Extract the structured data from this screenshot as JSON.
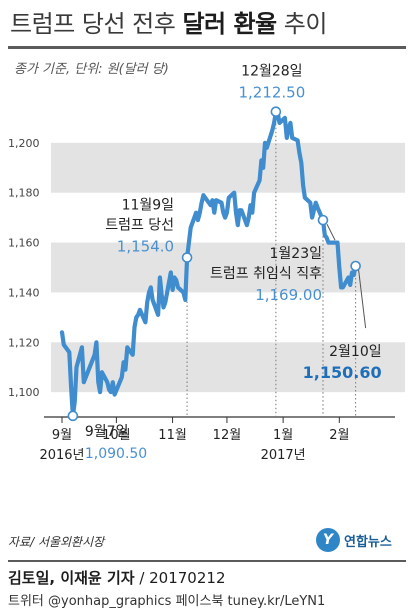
{
  "title": {
    "normal": "트럼프 당선 전후 ",
    "bold": "달러 환율",
    "tail": " 추이"
  },
  "unit_note": "종가 기준, 단위: 원(달러 당)",
  "chart_data": {
    "type": "line",
    "title": "트럼프 당선 전후 달러 환율 추이",
    "ylabel": "원(달러 당)",
    "ylim": [
      1080,
      1220
    ],
    "yticks": [
      1100,
      1120,
      1140,
      1160,
      1180,
      1200
    ],
    "ytick_labels": [
      "1,100",
      "1,120",
      "1,140",
      "1,160",
      "1,180",
      "1,200"
    ],
    "shaded_bands": [
      [
        1100,
        1120
      ],
      [
        1140,
        1160
      ],
      [
        1180,
        1200
      ]
    ],
    "xlim": [
      "2016-09-01",
      "2017-02-24"
    ],
    "xticks": [
      {
        "date": "2016-09-01",
        "label": "9월",
        "sublabel": "2016년"
      },
      {
        "date": "2016-10-01",
        "label": "10월",
        "sublabel": ""
      },
      {
        "date": "2016-11-01",
        "label": "11월",
        "sublabel": ""
      },
      {
        "date": "2016-12-01",
        "label": "12월",
        "sublabel": ""
      },
      {
        "date": "2017-01-01",
        "label": "1월",
        "sublabel": "2017년"
      },
      {
        "date": "2017-02-01",
        "label": "2월",
        "sublabel": ""
      }
    ],
    "series": [
      {
        "color": "#3f8ccf",
        "points": [
          [
            "2016-09-01",
            1124
          ],
          [
            "2016-09-02",
            1119
          ],
          [
            "2016-09-05",
            1116
          ],
          [
            "2016-09-06",
            1102
          ],
          [
            "2016-09-07",
            1090.5
          ],
          [
            "2016-09-08",
            1096
          ],
          [
            "2016-09-09",
            1110
          ],
          [
            "2016-09-12",
            1118
          ],
          [
            "2016-09-13",
            1104
          ],
          [
            "2016-09-19",
            1115
          ],
          [
            "2016-09-20",
            1120
          ],
          [
            "2016-09-21",
            1104
          ],
          [
            "2016-09-22",
            1100
          ],
          [
            "2016-09-23",
            1108
          ],
          [
            "2016-09-26",
            1104
          ],
          [
            "2016-09-27",
            1101
          ],
          [
            "2016-09-28",
            1100
          ],
          [
            "2016-09-29",
            1104
          ],
          [
            "2016-09-30",
            1099
          ],
          [
            "2016-10-04",
            1106
          ],
          [
            "2016-10-05",
            1112
          ],
          [
            "2016-10-06",
            1109
          ],
          [
            "2016-10-07",
            1118
          ],
          [
            "2016-10-10",
            1115
          ],
          [
            "2016-10-11",
            1126
          ],
          [
            "2016-10-12",
            1130
          ],
          [
            "2016-10-13",
            1131
          ],
          [
            "2016-10-14",
            1133
          ],
          [
            "2016-10-17",
            1128
          ],
          [
            "2016-10-18",
            1136
          ],
          [
            "2016-10-19",
            1140
          ],
          [
            "2016-10-20",
            1142
          ],
          [
            "2016-10-21",
            1137
          ],
          [
            "2016-10-24",
            1131
          ],
          [
            "2016-10-25",
            1146
          ],
          [
            "2016-10-26",
            1139
          ],
          [
            "2016-10-27",
            1134
          ],
          [
            "2016-10-28",
            1136
          ],
          [
            "2016-10-31",
            1148
          ],
          [
            "2016-11-01",
            1141
          ],
          [
            "2016-11-02",
            1146
          ],
          [
            "2016-11-03",
            1145
          ],
          [
            "2016-11-04",
            1142
          ],
          [
            "2016-11-07",
            1140
          ],
          [
            "2016-11-08",
            1137
          ],
          [
            "2016-11-09",
            1154
          ],
          [
            "2016-11-10",
            1160
          ],
          [
            "2016-11-11",
            1166
          ],
          [
            "2016-11-14",
            1172
          ],
          [
            "2016-11-15",
            1169
          ],
          [
            "2016-11-16",
            1172
          ],
          [
            "2016-11-17",
            1176
          ],
          [
            "2016-11-18",
            1179
          ],
          [
            "2016-11-21",
            1176
          ],
          [
            "2016-11-22",
            1175
          ],
          [
            "2016-11-23",
            1177
          ],
          [
            "2016-11-24",
            1172
          ],
          [
            "2016-11-25",
            1177
          ],
          [
            "2016-11-28",
            1176
          ],
          [
            "2016-11-29",
            1172
          ],
          [
            "2016-11-30",
            1170
          ],
          [
            "2016-12-01",
            1172
          ],
          [
            "2016-12-02",
            1178
          ],
          [
            "2016-12-05",
            1180
          ],
          [
            "2016-12-06",
            1172
          ],
          [
            "2016-12-07",
            1167
          ],
          [
            "2016-12-08",
            1173
          ],
          [
            "2016-12-09",
            1173
          ],
          [
            "2016-12-12",
            1167
          ],
          [
            "2016-12-13",
            1170
          ],
          [
            "2016-12-14",
            1175
          ],
          [
            "2016-12-15",
            1172
          ],
          [
            "2016-12-16",
            1180
          ],
          [
            "2016-12-19",
            1185
          ],
          [
            "2016-12-20",
            1193
          ],
          [
            "2016-12-21",
            1190
          ],
          [
            "2016-12-22",
            1200
          ],
          [
            "2016-12-23",
            1198
          ],
          [
            "2016-12-26",
            1205
          ],
          [
            "2016-12-27",
            1208
          ],
          [
            "2016-12-28",
            1212.5
          ],
          [
            "2016-12-29",
            1212
          ],
          [
            "2016-12-30",
            1208
          ],
          [
            "2017-01-02",
            1210
          ],
          [
            "2017-01-03",
            1202
          ],
          [
            "2017-01-04",
            1206
          ],
          [
            "2017-01-05",
            1208
          ],
          [
            "2017-01-06",
            1202
          ],
          [
            "2017-01-09",
            1201
          ],
          [
            "2017-01-10",
            1196
          ],
          [
            "2017-01-11",
            1192
          ],
          [
            "2017-01-12",
            1183
          ],
          [
            "2017-01-13",
            1178
          ],
          [
            "2017-01-16",
            1176
          ],
          [
            "2017-01-17",
            1170
          ],
          [
            "2017-01-18",
            1173
          ],
          [
            "2017-01-19",
            1176
          ],
          [
            "2017-01-20",
            1174
          ],
          [
            "2017-01-23",
            1169
          ],
          [
            "2017-01-24",
            1163
          ],
          [
            "2017-01-25",
            1162
          ],
          [
            "2017-01-26",
            1160
          ],
          [
            "2017-01-31",
            1160
          ],
          [
            "2017-02-01",
            1150
          ],
          [
            "2017-02-02",
            1142
          ],
          [
            "2017-02-03",
            1142
          ],
          [
            "2017-02-06",
            1146
          ],
          [
            "2017-02-07",
            1143
          ],
          [
            "2017-02-08",
            1148
          ],
          [
            "2017-02-09",
            1147
          ],
          [
            "2017-02-10",
            1150.6
          ]
        ]
      }
    ],
    "annotations": [
      {
        "date": "2016-09-07",
        "value": 1090.5,
        "label": "9월7일",
        "value_text": "1,090.50"
      },
      {
        "date": "2016-11-09",
        "value": 1154.0,
        "label": "11월9일\n트럼프 당선",
        "value_text": "1,154.0"
      },
      {
        "date": "2016-12-28",
        "value": 1212.5,
        "label": "12월28일",
        "value_text": "1,212.50"
      },
      {
        "date": "2017-01-23",
        "value": 1169.0,
        "label": "1월23일\n트럼프 취임식 직후",
        "value_text": "1,169.00"
      },
      {
        "date": "2017-02-10",
        "value": 1150.6,
        "label": "2월10일",
        "value_text": "1,150.60"
      }
    ]
  },
  "source_label": "자료/ 서울외환시장",
  "logo": {
    "mark": "Y",
    "text": "연합뉴스"
  },
  "credit": {
    "name": "김토일, 이재윤 기자",
    "date": " / 20170212"
  },
  "social": "트위터 @yonhap_graphics  페이스북 tuney.kr/LeYN1",
  "colors": {
    "line": "#3f8ccf",
    "value_text": "#4a90d0",
    "band": "#e3e3e3",
    "value_text_bold": "#1f6eb8"
  }
}
